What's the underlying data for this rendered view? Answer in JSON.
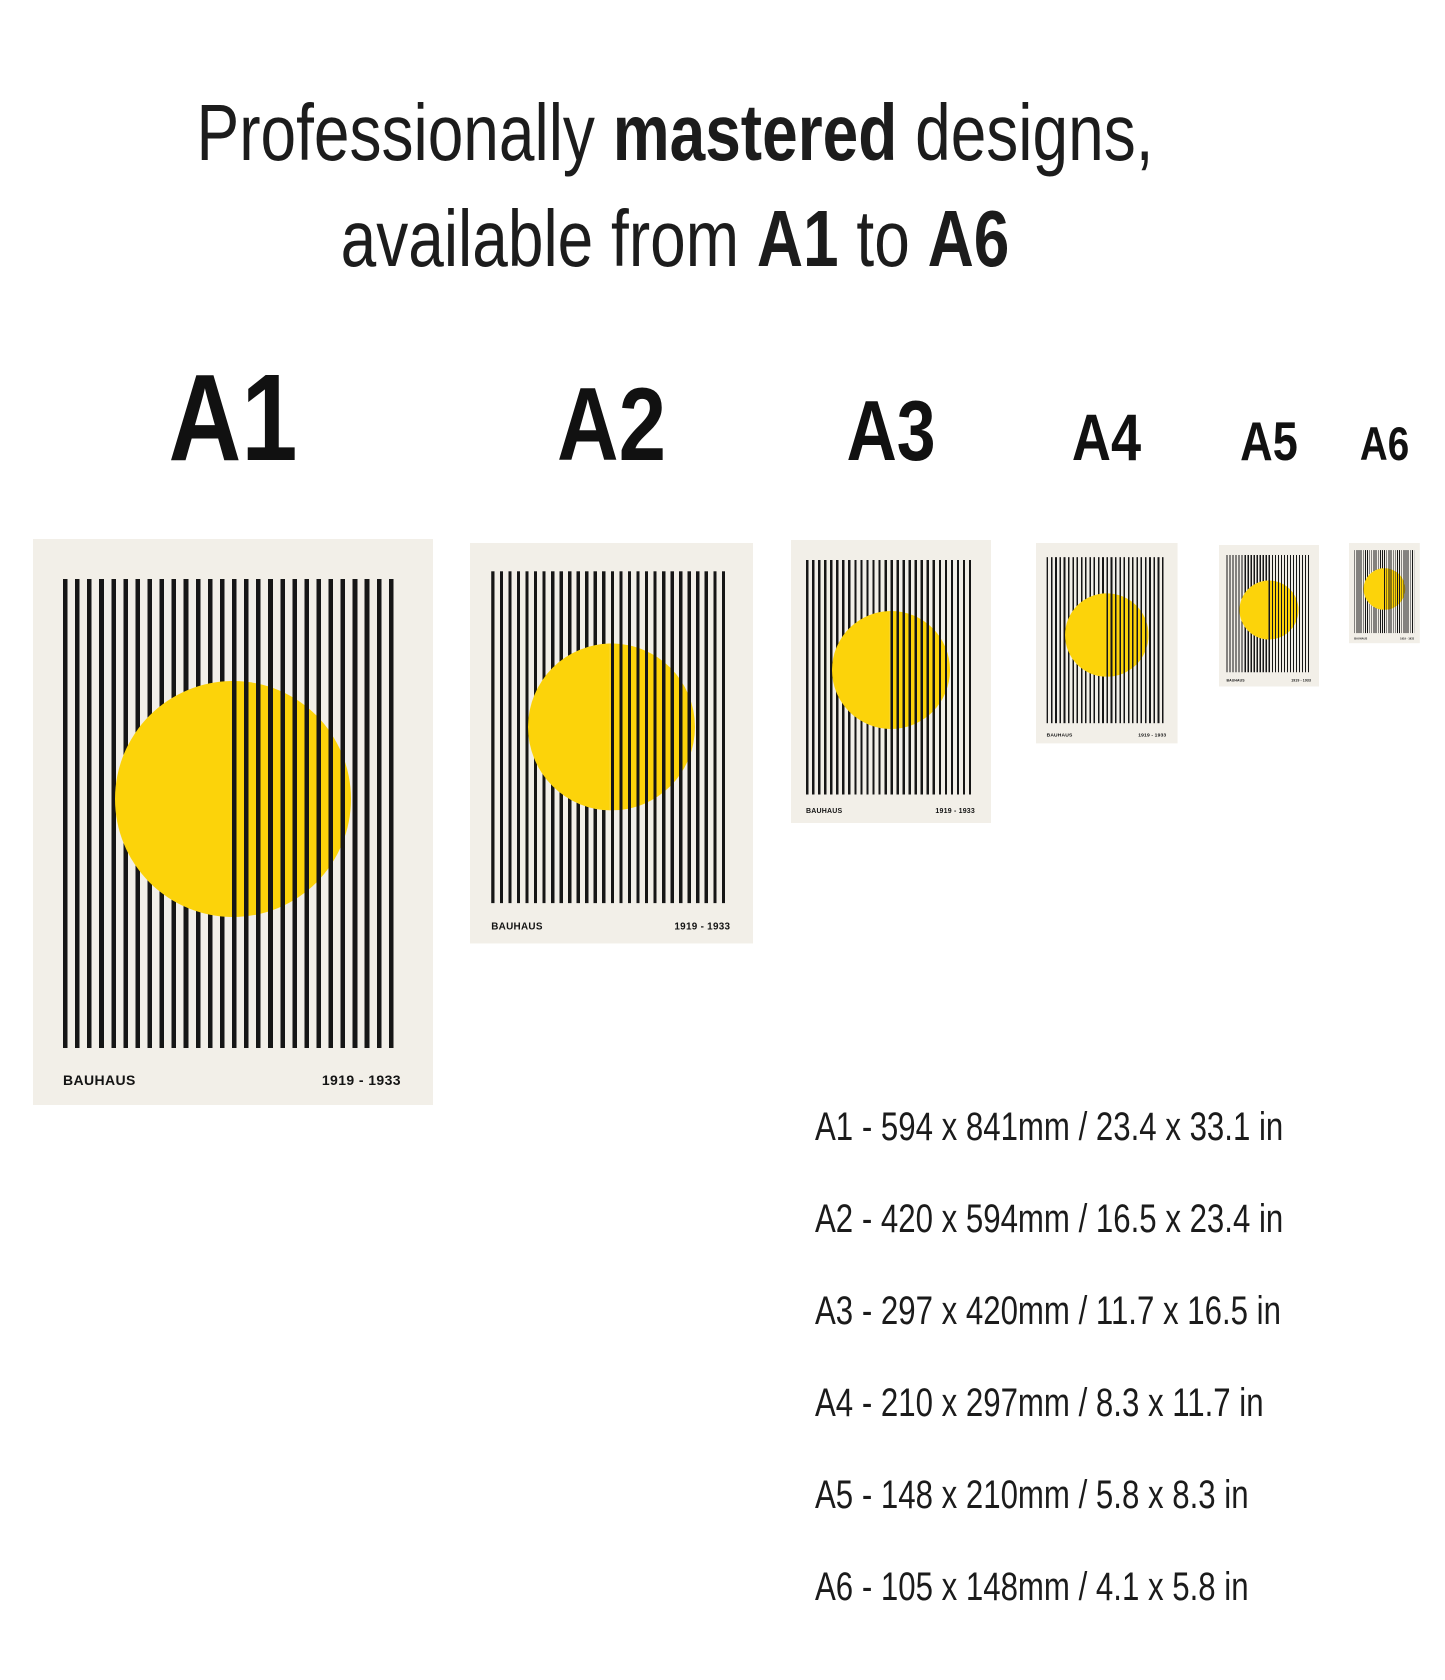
{
  "title": {
    "line1_pre": "Professionally ",
    "line1_bold": "mastered",
    "line1_post": " designs,",
    "line2_pre": "available from ",
    "line2_bold1": "A1",
    "line2_mid": " to ",
    "line2_bold2": "A6"
  },
  "labels": [
    "A1",
    "A2",
    "A3",
    "A4",
    "A5",
    "A6"
  ],
  "poster": {
    "brand": "BAUHAUS",
    "years": "1919 - 1933"
  },
  "sizes": [
    "A1 - 594 x 841mm / 23.4 x 33.1 in",
    "A2 - 420 x 594mm / 16.5 x 23.4 in",
    "A3 - 297 x 420mm / 11.7 x 16.5 in",
    "A4 - 210 x 297mm / 8.3 x 11.7 in",
    "A5 - 148 x 210mm / 5.8 x 8.3 in",
    "A6 - 105 x 148mm / 4.1 x 5.8 in"
  ],
  "colors": {
    "yellow": "#FCD30A",
    "cream": "#F2EFE8",
    "stripe_black": "#161616",
    "text": "#1C1C1C",
    "page_background": "#FFFFFF"
  }
}
